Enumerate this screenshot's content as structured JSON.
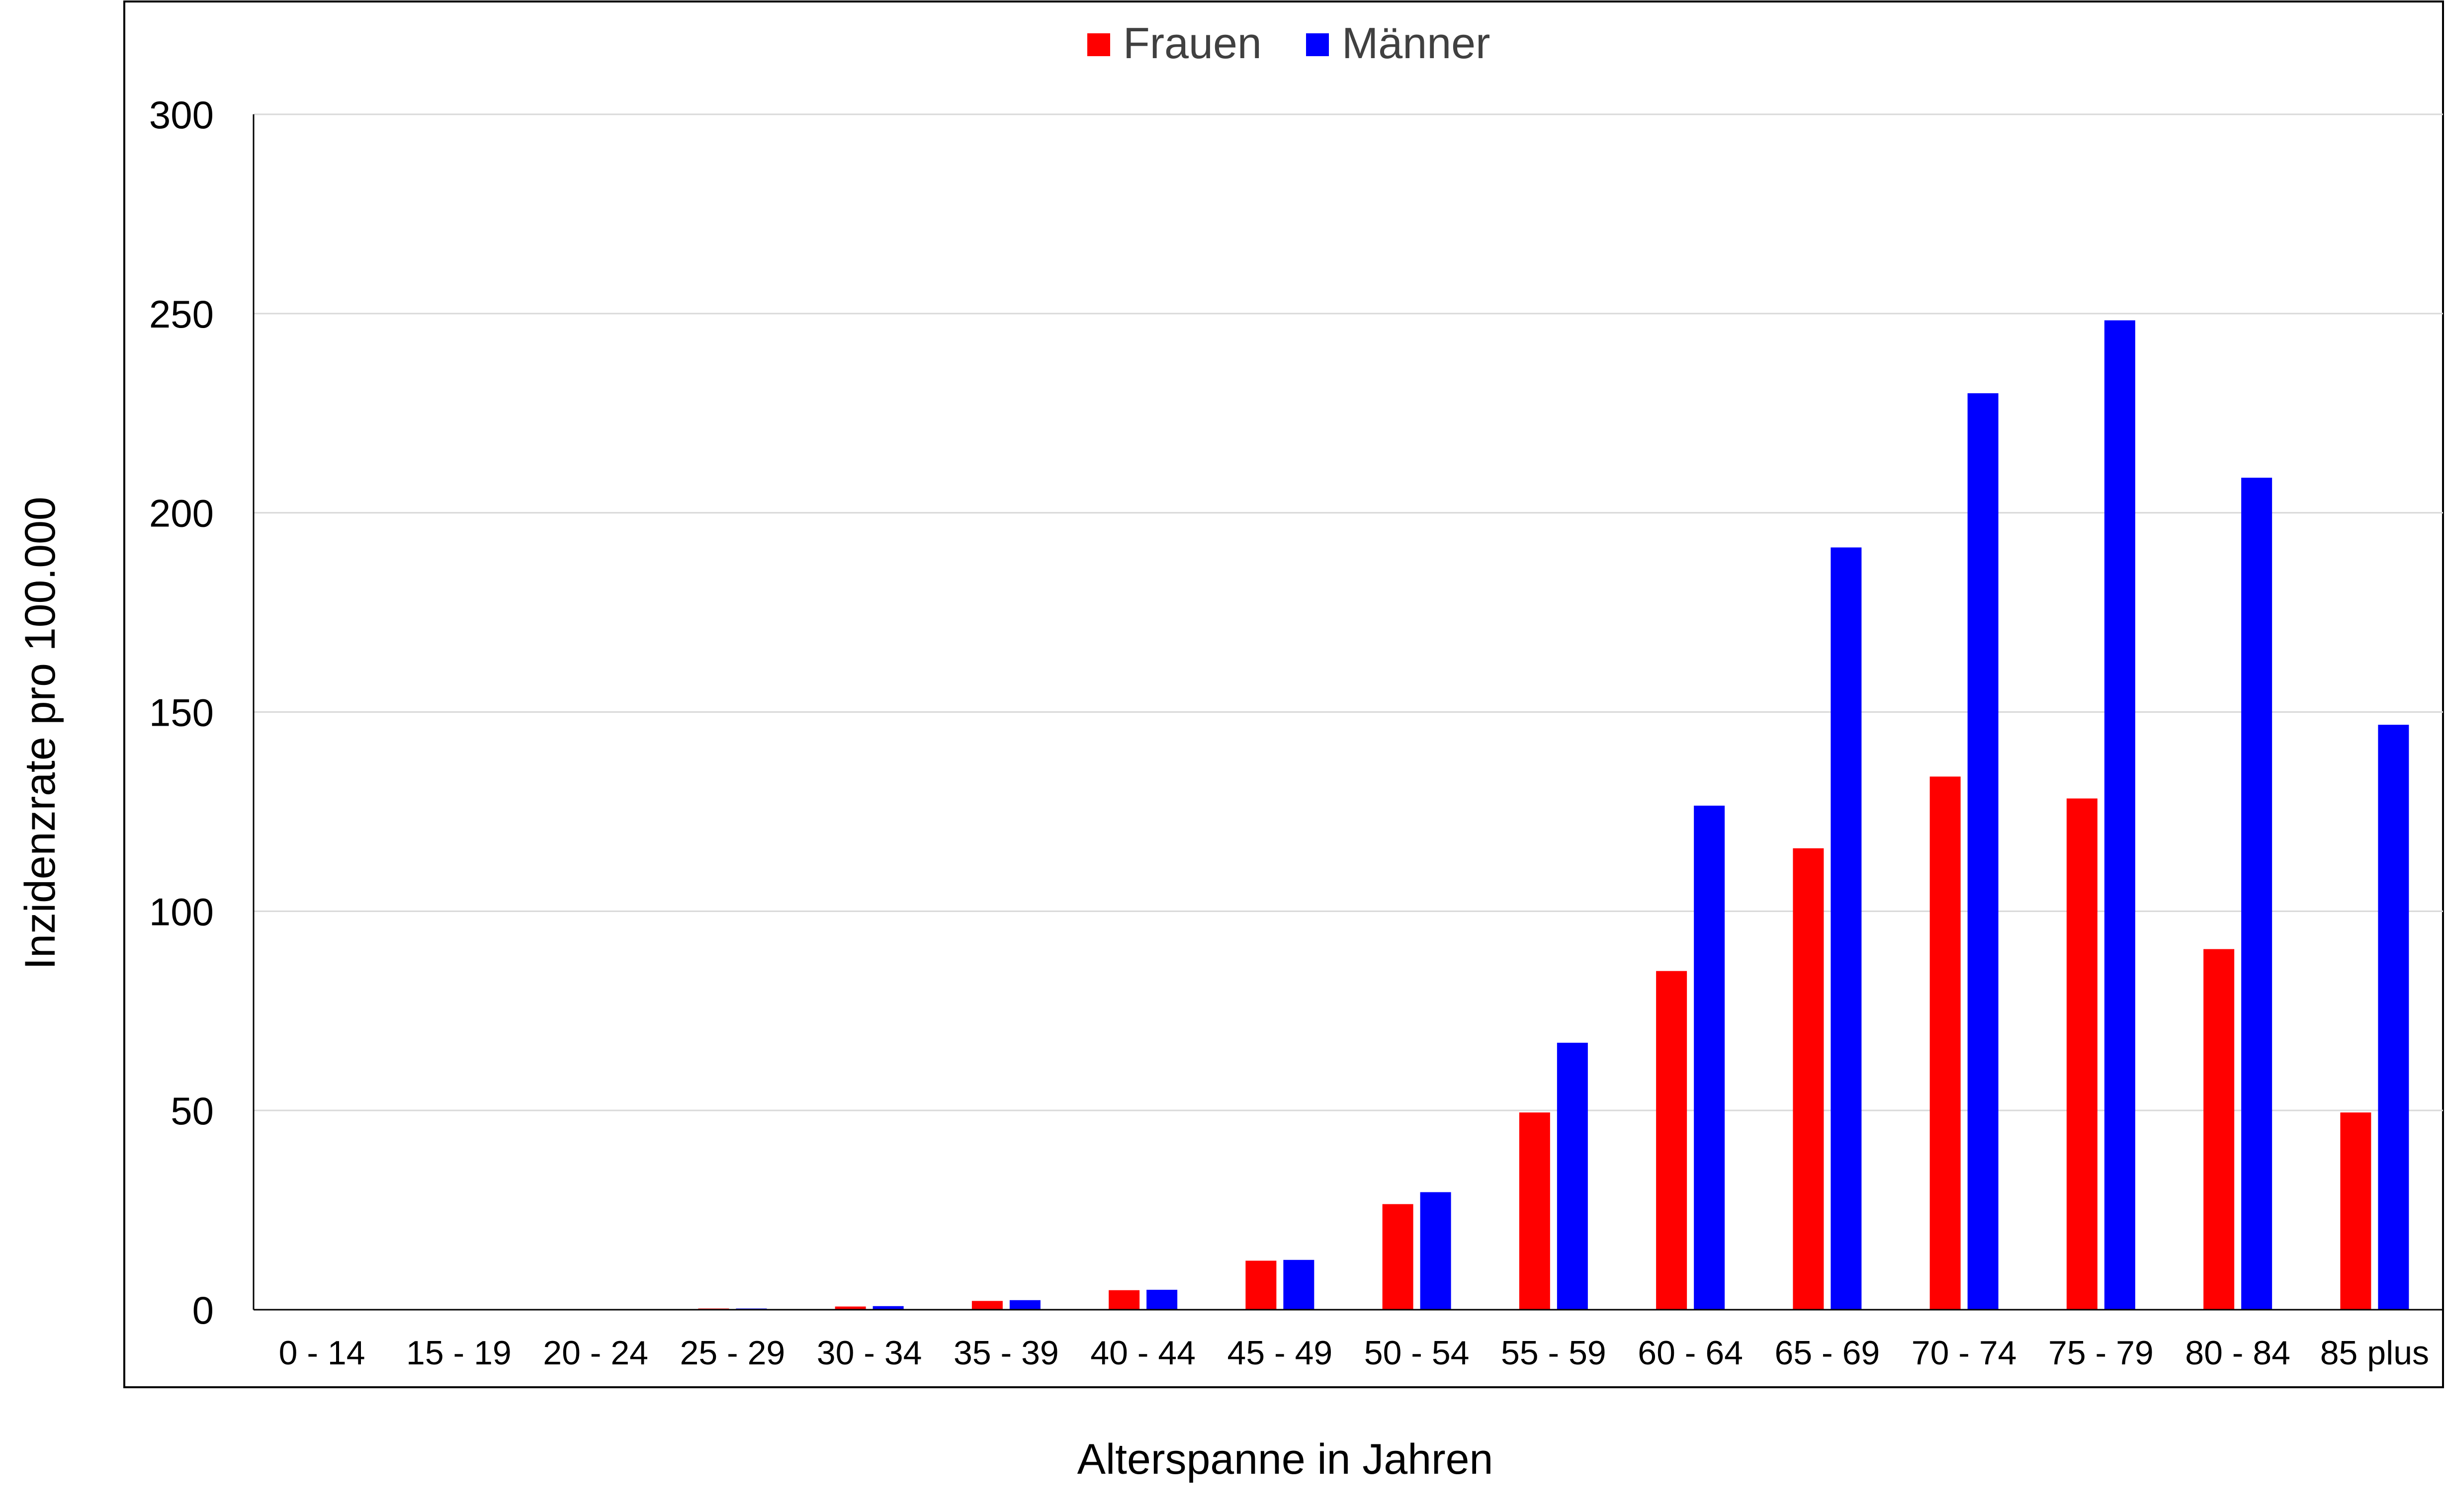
{
  "chart_data": {
    "type": "bar",
    "title": "",
    "xlabel": "Alterspanne in Jahren",
    "ylabel": "Inzidenzrate pro 100.000",
    "ylim": [
      0,
      300
    ],
    "yticks": [
      0,
      50,
      100,
      150,
      200,
      250,
      300
    ],
    "grid": true,
    "legend_position": "top-center",
    "categories": [
      "0 - 14",
      "15 - 19",
      "20 - 24",
      "25 - 29",
      "30 - 34",
      "35 - 39",
      "40 - 44",
      "45 - 49",
      "50 - 54",
      "55 - 59",
      "60 - 64",
      "65 - 69",
      "70 - 74",
      "75 - 79",
      "80 - 84",
      "85 plus"
    ],
    "series": [
      {
        "name": "Frauen",
        "color": "#ff0000",
        "values": [
          0,
          0,
          0.1,
          0.3,
          0.8,
          2.2,
          4.9,
          12.3,
          26.5,
          49.5,
          85,
          115.8,
          133.8,
          128.3,
          90.5,
          49.5
        ]
      },
      {
        "name": "Männer",
        "color": "#0000ff",
        "values": [
          0,
          0,
          0.1,
          0.3,
          0.9,
          2.4,
          5.0,
          12.5,
          29.5,
          67.0,
          126.5,
          191.3,
          230.0,
          248.3,
          208.8,
          146.8
        ]
      }
    ]
  }
}
